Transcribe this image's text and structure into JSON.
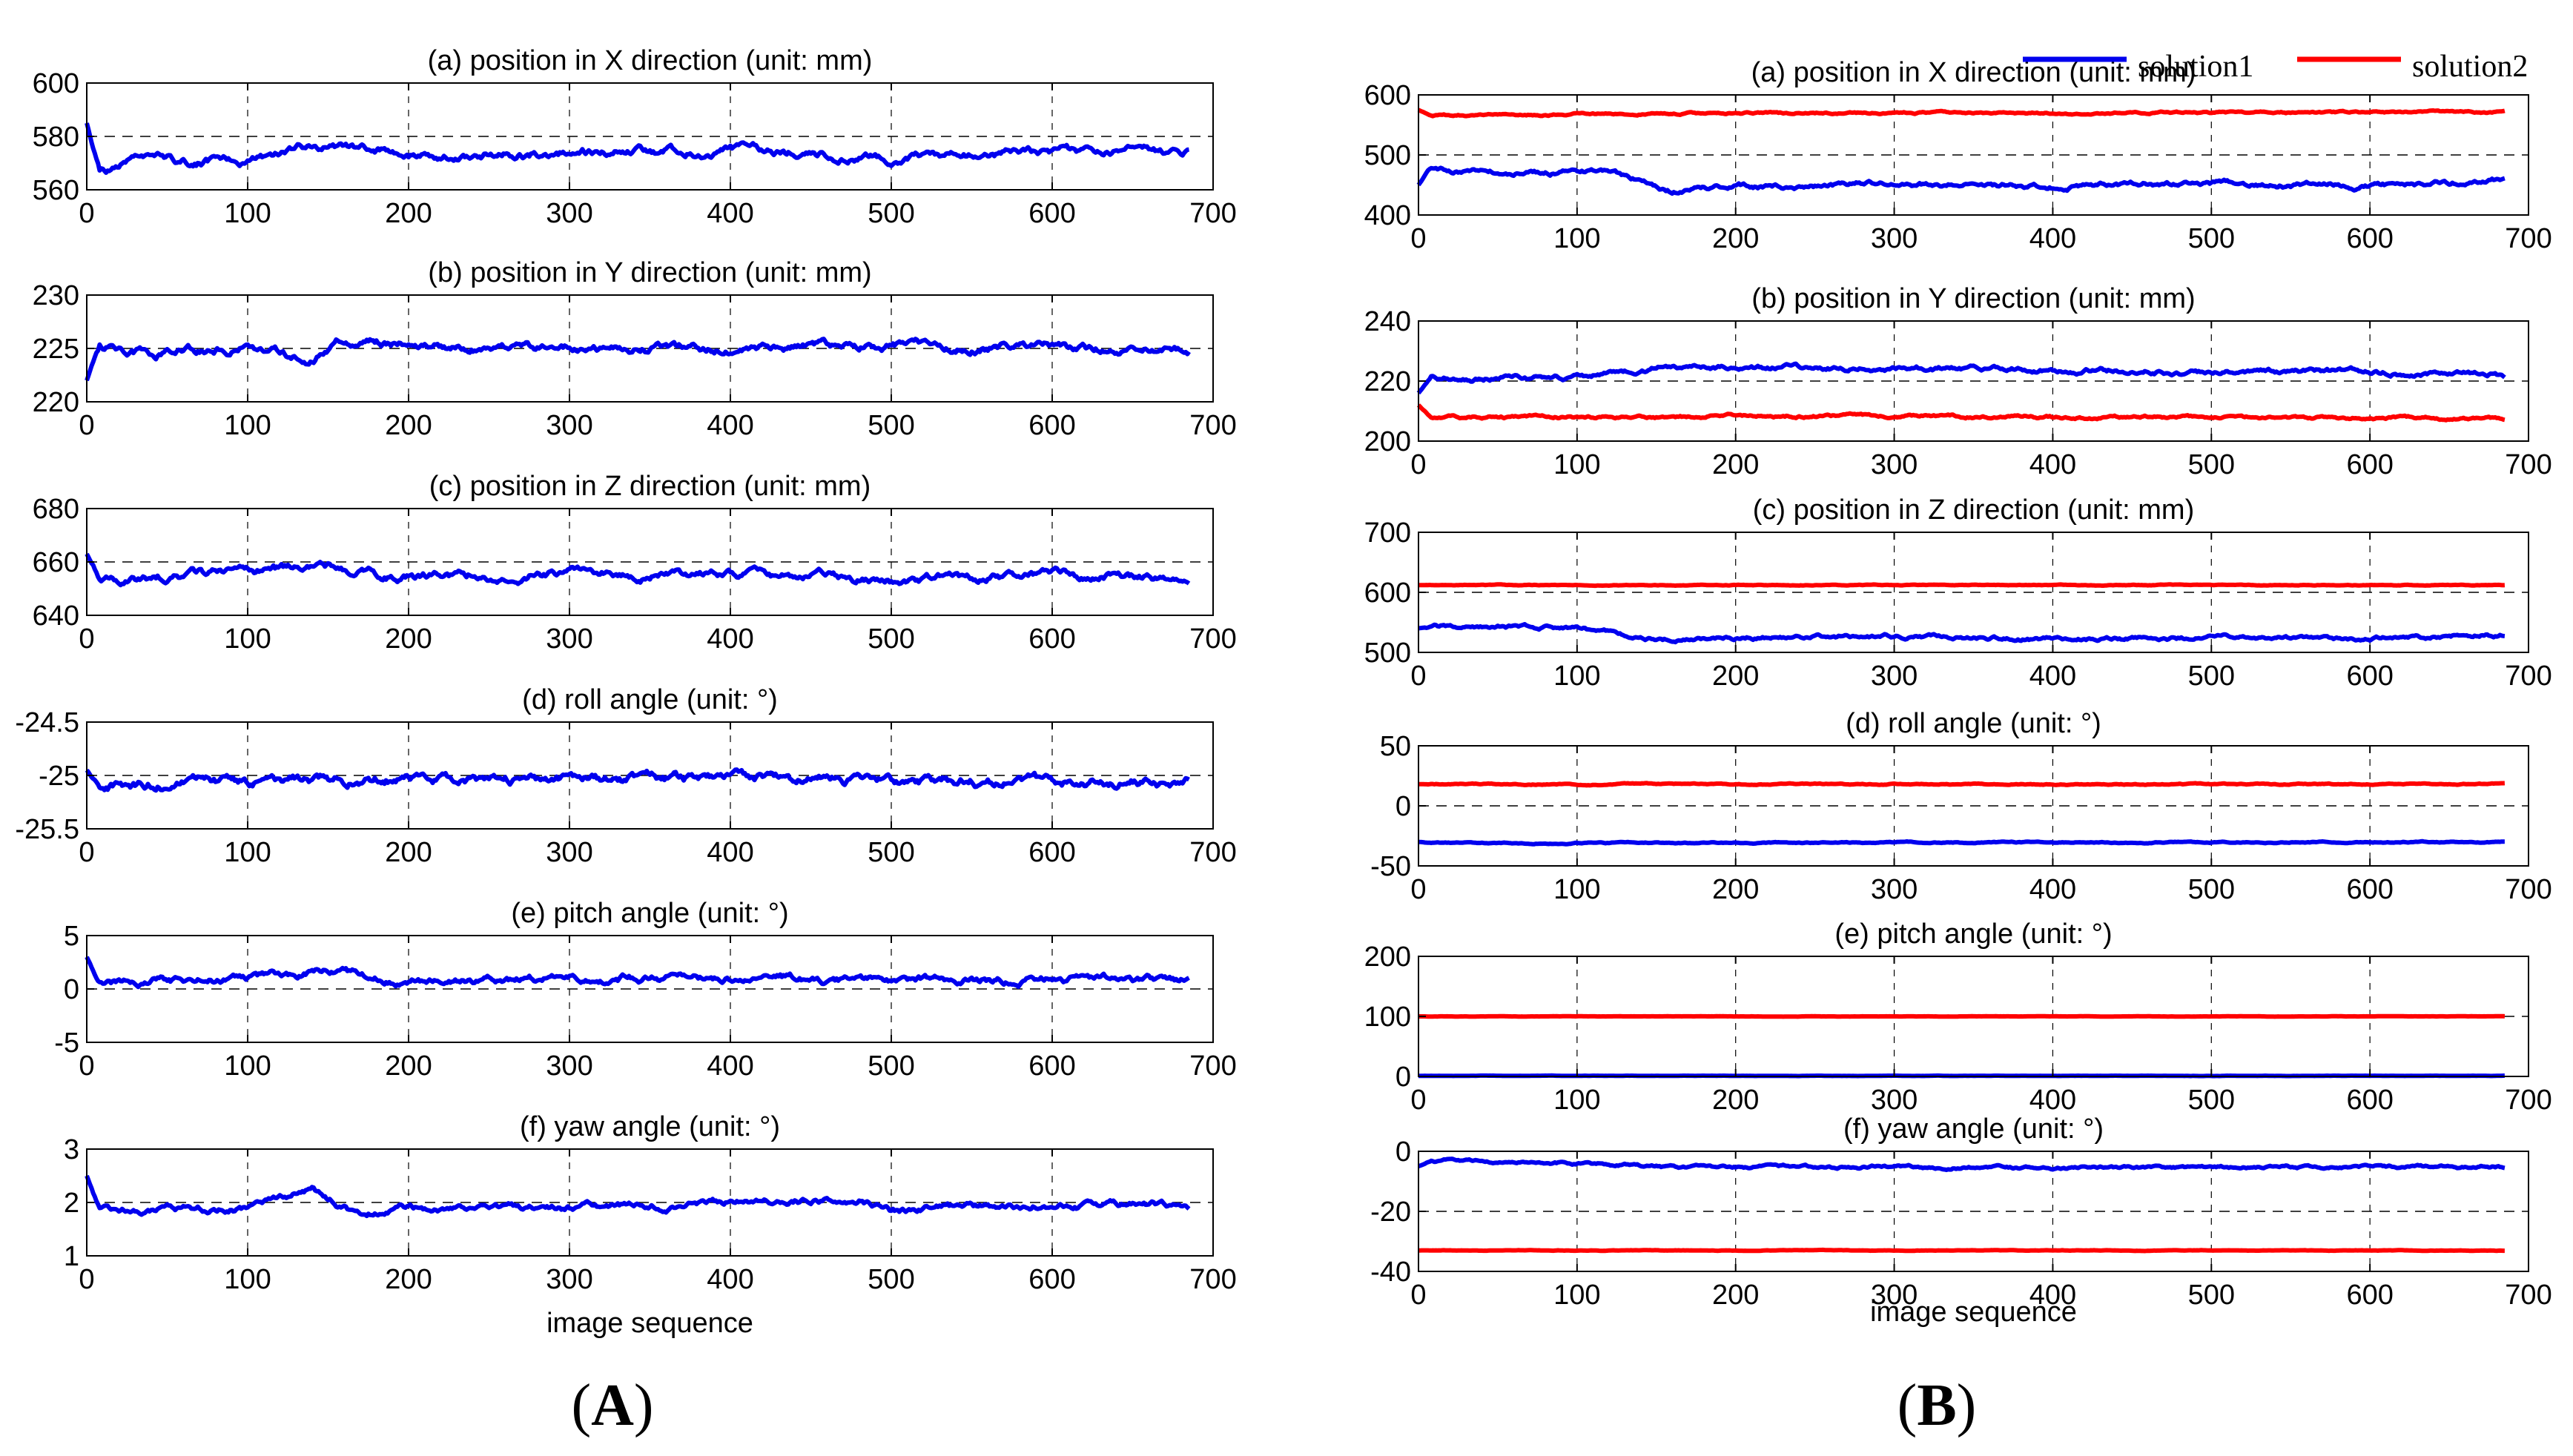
{
  "chart_data": [
    {
      "panel": "A",
      "type": "line",
      "xlabel": "image sequence",
      "x_ticks": [
        "0",
        "100",
        "200",
        "300",
        "400",
        "500",
        "600",
        "700"
      ],
      "xlim": [
        0,
        700
      ],
      "n_points": 686,
      "series_colors": [
        "#0000ee"
      ],
      "subplots": [
        {
          "title": "(a) position in X direction (unit: mm)",
          "ylim": [
            560,
            600
          ],
          "yticks": [
            "560",
            "580",
            "600"
          ],
          "ytick_vals": [
            560,
            580,
            600
          ],
          "dashed": [
            580
          ],
          "series": [
            {
              "name": "solution1",
              "start": 585,
              "base": [
                [
                  0,
                  566
                ],
                [
                  30,
                  570
                ],
                [
                  100,
                  571
                ],
                [
                  140,
                  577
                ],
                [
                  200,
                  573
                ],
                [
                  300,
                  574
                ],
                [
                  400,
                  575
                ],
                [
                  500,
                  572
                ],
                [
                  600,
                  574
                ],
                [
                  686,
                  575
                ]
              ],
              "noise": 2
            }
          ]
        },
        {
          "title": "(b) position in Y direction (unit: mm)",
          "ylim": [
            220,
            230
          ],
          "yticks": [
            "220",
            "225",
            "230"
          ],
          "ytick_vals": [
            220,
            225,
            230
          ],
          "dashed": [
            225
          ],
          "series": [
            {
              "name": "solution1",
              "start": 222,
              "base": [
                [
                  0,
                  225.5
                ],
                [
                  40,
                  224.5
                ],
                [
                  100,
                  225
                ],
                [
                  130,
                  224.2
                ],
                [
                  140,
                  224
                ],
                [
                  160,
                  225.8
                ],
                [
                  200,
                  225.3
                ],
                [
                  300,
                  225
                ],
                [
                  400,
                  224.9
                ],
                [
                  500,
                  225.3
                ],
                [
                  600,
                  225
                ],
                [
                  686,
                  225
                ]
              ],
              "noise": 0.5
            }
          ]
        },
        {
          "title": "(c) position in Z direction (unit: mm)",
          "ylim": [
            640,
            680
          ],
          "yticks": [
            "640",
            "660",
            "680"
          ],
          "ytick_vals": [
            640,
            660,
            680
          ],
          "dashed": [
            660
          ],
          "series": [
            {
              "name": "solution1",
              "start": 663,
              "base": [
                [
                  0,
                  653
                ],
                [
                  100,
                  656
                ],
                [
                  150,
                  658
                ],
                [
                  200,
                  654
                ],
                [
                  300,
                  656
                ],
                [
                  400,
                  655
                ],
                [
                  500,
                  653
                ],
                [
                  600,
                  655
                ],
                [
                  686,
                  654
                ]
              ],
              "noise": 2
            }
          ]
        },
        {
          "title": "(d) roll angle (unit: °)",
          "ylim": [
            -25.5,
            -24.5
          ],
          "yticks": [
            "-25.5",
            "-25",
            "-24.5"
          ],
          "ytick_vals": [
            -25.5,
            -25,
            -24.5
          ],
          "dashed": [
            -25
          ],
          "series": [
            {
              "name": "solution1",
              "start": -24.95,
              "base": [
                [
                  0,
                  -25.1
                ],
                [
                  100,
                  -25.05
                ],
                [
                  200,
                  -25.02
                ],
                [
                  300,
                  -25.05
                ],
                [
                  400,
                  -25.03
                ],
                [
                  500,
                  -25.06
                ],
                [
                  600,
                  -25.05
                ],
                [
                  686,
                  -25.07
                ]
              ],
              "noise": 0.06
            }
          ]
        },
        {
          "title": "(e) pitch angle (unit: °)",
          "ylim": [
            -5,
            5
          ],
          "yticks": [
            "-5",
            "0",
            "5"
          ],
          "ytick_vals": [
            -5,
            0,
            5
          ],
          "dashed": [
            0
          ],
          "series": [
            {
              "name": "solution1",
              "start": 3,
              "base": [
                [
                  0,
                  0.6
                ],
                [
                  100,
                  0.9
                ],
                [
                  150,
                  1.6
                ],
                [
                  200,
                  0.7
                ],
                [
                  300,
                  1.1
                ],
                [
                  400,
                  1.1
                ],
                [
                  500,
                  0.8
                ],
                [
                  600,
                  0.9
                ],
                [
                  686,
                  0.8
                ]
              ],
              "noise": 0.45
            }
          ]
        },
        {
          "title": "(f) yaw angle (unit: °)",
          "ylim": [
            1,
            3
          ],
          "yticks": [
            "1",
            "2",
            "3"
          ],
          "ytick_vals": [
            1,
            2,
            3
          ],
          "dashed": [
            2
          ],
          "series": [
            {
              "name": "solution1",
              "start": 2.5,
              "base": [
                [
                  0,
                  1.85
                ],
                [
                  100,
                  1.9
                ],
                [
                  140,
                  2.25
                ],
                [
                  170,
                  1.75
                ],
                [
                  200,
                  1.9
                ],
                [
                  300,
                  1.9
                ],
                [
                  400,
                  2.0
                ],
                [
                  480,
                  2.1
                ],
                [
                  500,
                  1.85
                ],
                [
                  600,
                  1.95
                ],
                [
                  686,
                  1.95
                ]
              ],
              "noise": 0.08
            }
          ]
        }
      ]
    },
    {
      "panel": "B",
      "type": "line",
      "xlabel": "image sequence",
      "x_ticks": [
        "0",
        "100",
        "200",
        "300",
        "400",
        "500",
        "600",
        "700"
      ],
      "xlim": [
        0,
        700
      ],
      "n_points": 686,
      "legend": [
        "solution1",
        "solution2"
      ],
      "legend_position": "top-right",
      "series_colors": [
        "#0000ee",
        "#ff0000"
      ],
      "subplots": [
        {
          "title": "(a) position in X direction (unit: mm)",
          "ylim": [
            400,
            600
          ],
          "yticks": [
            "400",
            "500",
            "600"
          ],
          "ytick_vals": [
            400,
            500,
            600
          ],
          "dashed": [
            500
          ],
          "series": [
            {
              "name": "solution1",
              "start": 450,
              "base": [
                [
                  0,
                  475
                ],
                [
                  120,
                  470
                ],
                [
                  160,
                  440
                ],
                [
                  200,
                  448
                ],
                [
                  300,
                  452
                ],
                [
                  400,
                  448
                ],
                [
                  500,
                  452
                ],
                [
                  600,
                  448
                ],
                [
                  686,
                  458
                ]
              ],
              "noise": 5
            },
            {
              "name": "solution2",
              "start": 575,
              "base": [
                [
                  0,
                  565
                ],
                [
                  100,
                  568
                ],
                [
                  200,
                  570
                ],
                [
                  400,
                  570
                ],
                [
                  686,
                  571
                ]
              ],
              "noise": 2
            }
          ]
        },
        {
          "title": "(b) position in Y direction (unit: mm)",
          "ylim": [
            200,
            240
          ],
          "yticks": [
            "200",
            "220",
            "240"
          ],
          "ytick_vals": [
            200,
            220,
            240
          ],
          "dashed": [
            220
          ],
          "series": [
            {
              "name": "solution1",
              "start": 216,
              "base": [
                [
                  0,
                  221
                ],
                [
                  100,
                  221
                ],
                [
                  160,
                  225
                ],
                [
                  300,
                  224
                ],
                [
                  400,
                  224
                ],
                [
                  500,
                  223
                ],
                [
                  600,
                  223
                ],
                [
                  686,
                  222
                ]
              ],
              "noise": 1
            },
            {
              "name": "solution2",
              "start": 212,
              "base": [
                [
                  0,
                  208
                ],
                [
                  160,
                  208
                ],
                [
                  200,
                  208.5
                ],
                [
                  686,
                  207.5
                ]
              ],
              "noise": 0.6
            }
          ]
        },
        {
          "title": "(c) position in Z direction (unit: mm)",
          "ylim": [
            500,
            700
          ],
          "yticks": [
            "500",
            "600",
            "700"
          ],
          "ytick_vals": [
            500,
            600,
            700
          ],
          "dashed": [
            600
          ],
          "series": [
            {
              "name": "solution1",
              "start": 540,
              "base": [
                [
                  0,
                  545
                ],
                [
                  100,
                  540
                ],
                [
                  150,
                  522
                ],
                [
                  200,
                  524
                ],
                [
                  300,
                  527
                ],
                [
                  400,
                  522
                ],
                [
                  500,
                  525
                ],
                [
                  600,
                  522
                ],
                [
                  686,
                  530
                ]
              ],
              "noise": 4
            },
            {
              "name": "solution2",
              "start": 612,
              "base": [
                [
                  0,
                  612
                ],
                [
                  686,
                  612
                ]
              ],
              "noise": 0.8
            }
          ]
        },
        {
          "title": "(d) roll angle (unit: °)",
          "ylim": [
            -50,
            50
          ],
          "yticks": [
            "-50",
            "0",
            "50"
          ],
          "ytick_vals": [
            -50,
            0,
            50
          ],
          "dashed": [
            0,
            50
          ],
          "series": [
            {
              "name": "solution1",
              "start": -30,
              "base": [
                [
                  0,
                  -31
                ],
                [
                  686,
                  -30
                ]
              ],
              "noise": 0.6
            },
            {
              "name": "solution2",
              "start": 18,
              "base": [
                [
                  0,
                  18
                ],
                [
                  686,
                  18
                ]
              ],
              "noise": 0.6
            }
          ]
        },
        {
          "title": "(e) pitch angle (unit: °)",
          "ylim": [
            0,
            200
          ],
          "yticks": [
            "0",
            "100",
            "200"
          ],
          "ytick_vals": [
            0,
            100,
            200
          ],
          "dashed": [
            100,
            200
          ],
          "series": [
            {
              "name": "solution1",
              "start": 1,
              "base": [
                [
                  0,
                  1
                ],
                [
                  686,
                  1
                ]
              ],
              "noise": 0.3
            },
            {
              "name": "solution2",
              "start": 100,
              "base": [
                [
                  0,
                  100
                ],
                [
                  686,
                  100
                ]
              ],
              "noise": 0.3
            }
          ]
        },
        {
          "title": "(f) yaw angle (unit: °)",
          "ylim": [
            -40,
            0
          ],
          "yticks": [
            "-40",
            "-20",
            "0"
          ],
          "ytick_vals": [
            -40,
            -20,
            0
          ],
          "dashed": [
            -20,
            0
          ],
          "series": [
            {
              "name": "solution1",
              "start": -5,
              "base": [
                [
                  0,
                  -3
                ],
                [
                  100,
                  -4
                ],
                [
                  160,
                  -5.5
                ],
                [
                  300,
                  -5
                ],
                [
                  400,
                  -5.5
                ],
                [
                  686,
                  -5
                ]
              ],
              "noise": 0.6
            },
            {
              "name": "solution2",
              "start": -33,
              "base": [
                [
                  0,
                  -33
                ],
                [
                  686,
                  -33
                ]
              ],
              "noise": 0.1
            }
          ]
        }
      ]
    }
  ],
  "labels": {
    "panel_a": "A",
    "panel_b": "B"
  }
}
